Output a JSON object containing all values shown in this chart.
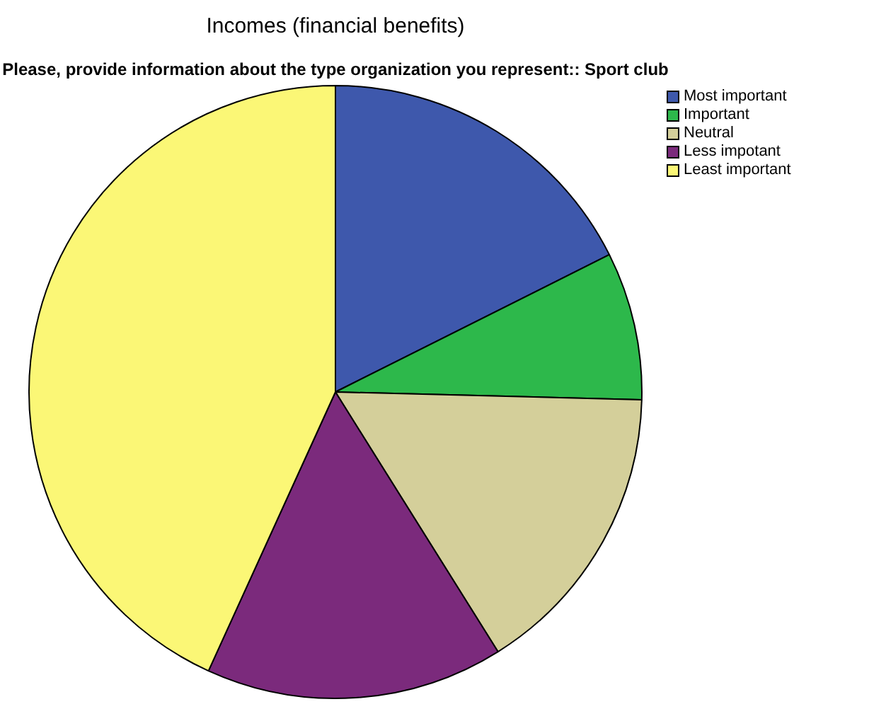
{
  "chart_data": {
    "type": "pie",
    "title": "Incomes (financial benefits)",
    "subtitle": "Please, provide information about the type organization you represent:: Sport club",
    "categories": [
      "Most important",
      "Important",
      "Neutral",
      "Less impotant",
      "Least important"
    ],
    "values": [
      17.6,
      7.8,
      15.7,
      15.7,
      43.2
    ],
    "colors": [
      "#3e58ac",
      "#2db84b",
      "#d4cf9a",
      "#7b2a7c",
      "#fbf776"
    ],
    "legend": "top right"
  }
}
